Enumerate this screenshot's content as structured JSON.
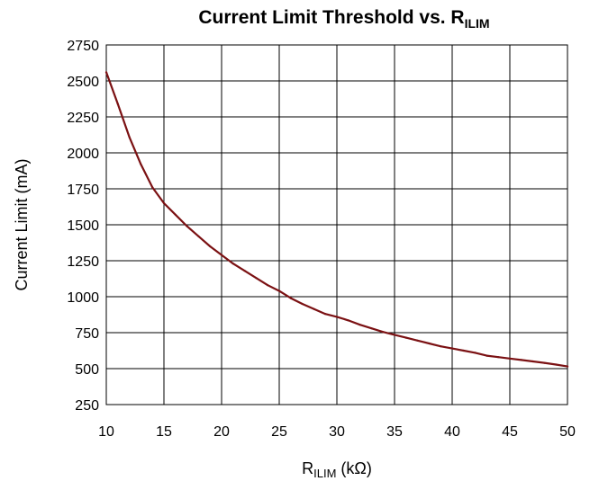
{
  "chart_data": {
    "type": "line",
    "title": {
      "main": "Current Limit Threshold vs. R",
      "sub": "ILIM"
    },
    "xlabel": {
      "main": "R",
      "sub": "ILIM",
      "unit": " (kΩ)"
    },
    "ylabel": "Current Limit (mA)",
    "xlim": [
      10,
      50
    ],
    "ylim": [
      250,
      2750
    ],
    "x_ticks": [
      "10",
      "15",
      "20",
      "25",
      "30",
      "35",
      "40",
      "45",
      "50"
    ],
    "y_ticks": [
      "250",
      "500",
      "750",
      "1000",
      "1250",
      "1500",
      "1750",
      "2000",
      "2250",
      "2500",
      "2750"
    ],
    "grid": true,
    "line_color": "#7b1113",
    "series": [
      {
        "x": [
          10,
          11,
          12,
          13,
          14,
          15,
          16,
          17,
          18,
          19,
          20,
          21,
          22,
          23,
          24,
          25,
          26,
          27,
          28,
          29,
          30,
          31,
          32,
          33,
          34,
          35,
          36,
          37,
          38,
          39,
          40,
          41,
          42,
          43,
          44,
          45,
          46,
          47,
          48,
          49,
          50
        ],
        "values": [
          2560,
          2340,
          2110,
          1920,
          1760,
          1650,
          1570,
          1490,
          1420,
          1350,
          1290,
          1230,
          1180,
          1130,
          1080,
          1040,
          990,
          950,
          915,
          880,
          860,
          835,
          805,
          780,
          755,
          735,
          715,
          695,
          675,
          655,
          640,
          625,
          610,
          590,
          580,
          570,
          560,
          550,
          540,
          528,
          515
        ]
      }
    ]
  }
}
